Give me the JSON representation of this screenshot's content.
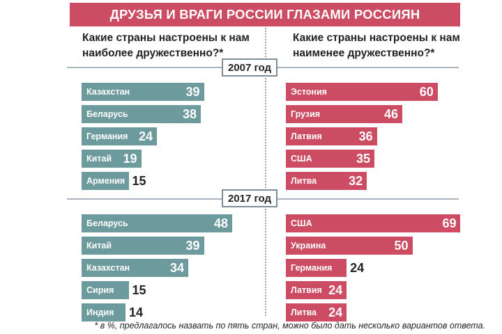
{
  "title": "ДРУЗЬЯ И ВРАГИ РОССИИ ГЛАЗАМИ РОССИЯН",
  "question_left": "Какие страны настроены к нам наиболее дружественно?*",
  "question_right": "Какие страны настроены к нам наименее дружественно?*",
  "footnote": "* в %, предлагалось назвать по пять стран, можно было дать несколько вариантов ответа.",
  "colors": {
    "title_bg": "#cc4c63",
    "friend": "#6c9a9d",
    "enemy": "#cc4c63"
  },
  "chart_data": [
    {
      "type": "bar",
      "panel": "2007 год",
      "side": "left",
      "series_color": "#6c9a9d",
      "categories": [
        "Казахстан",
        "Беларусь",
        "Германия",
        "Китай",
        "Армения"
      ],
      "values": [
        39,
        38,
        24,
        19,
        15
      ]
    },
    {
      "type": "bar",
      "panel": "2007 год",
      "side": "right",
      "series_color": "#cc4c63",
      "categories": [
        "Эстония",
        "Грузия",
        "Латвия",
        "США",
        "Литва"
      ],
      "values": [
        60,
        46,
        36,
        35,
        32
      ]
    },
    {
      "type": "bar",
      "panel": "2017 год",
      "side": "left",
      "series_color": "#6c9a9d",
      "categories": [
        "Беларусь",
        "Китай",
        "Казахстан",
        "Сирия",
        "Индия"
      ],
      "values": [
        48,
        39,
        34,
        15,
        14
      ]
    },
    {
      "type": "bar",
      "panel": "2017 год",
      "side": "right",
      "series_color": "#cc4c63",
      "categories": [
        "США",
        "Украина",
        "Германия",
        "Латвия",
        "Литва"
      ],
      "values": [
        69,
        50,
        24,
        24,
        24
      ]
    }
  ]
}
